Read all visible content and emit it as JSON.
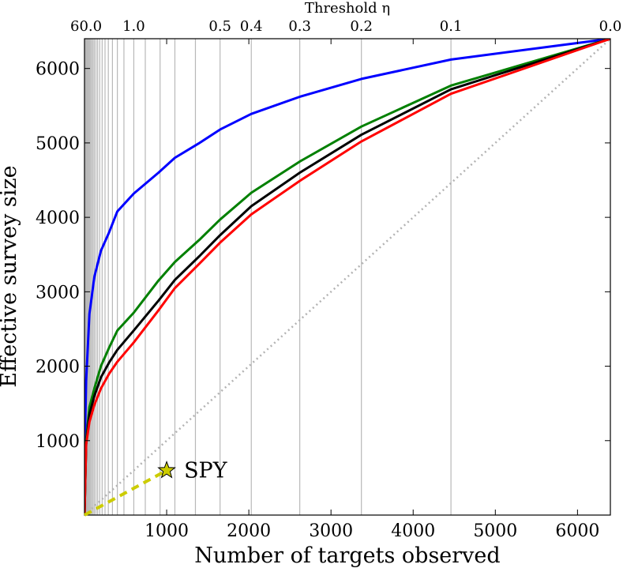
{
  "chart_data": {
    "type": "line",
    "xlabel": "Number of targets observed",
    "ylabel": "Effective survey size",
    "top_axis_title": "Threshold η",
    "xlim": [
      0,
      6400
    ],
    "ylim": [
      0,
      6400
    ],
    "x_ticks": [
      {
        "value": 1000,
        "label": "1000"
      },
      {
        "value": 2000,
        "label": "2000"
      },
      {
        "value": 3000,
        "label": "3000"
      },
      {
        "value": 4000,
        "label": "4000"
      },
      {
        "value": 5000,
        "label": "5000"
      },
      {
        "value": 6000,
        "label": "6000"
      }
    ],
    "y_ticks": [
      {
        "value": 1000,
        "label": "1000"
      },
      {
        "value": 2000,
        "label": "2000"
      },
      {
        "value": 3000,
        "label": "3000"
      },
      {
        "value": 4000,
        "label": "4000"
      },
      {
        "value": 5000,
        "label": "5000"
      },
      {
        "value": 6000,
        "label": "6000"
      }
    ],
    "threshold_ticks": [
      {
        "x": 20,
        "label": "60.0"
      },
      {
        "x": 600,
        "label": "1.0"
      },
      {
        "x": 1650,
        "label": "0.5"
      },
      {
        "x": 2030,
        "label": "0.4"
      },
      {
        "x": 2620,
        "label": "0.3"
      },
      {
        "x": 3370,
        "label": "0.2"
      },
      {
        "x": 4460,
        "label": "0.1"
      },
      {
        "x": 6400,
        "label": "0.0"
      }
    ],
    "threshold_gridlines": [
      5,
      10,
      15,
      20,
      28,
      36,
      45,
      55,
      65,
      75,
      90,
      105,
      120,
      140,
      160,
      185,
      215,
      250,
      290,
      340,
      400,
      480,
      600,
      740,
      920,
      1100,
      1350,
      1650,
      2030,
      2620,
      3370,
      4460
    ],
    "series": [
      {
        "color": "#0000ff",
        "x": [
          0,
          5,
          20,
          60,
          120,
          200,
          300,
          400,
          600,
          900,
          1100,
          1400,
          1650,
          2030,
          2620,
          3370,
          4460,
          6400
        ],
        "y": [
          0,
          1000,
          1800,
          2700,
          3200,
          3550,
          3800,
          4080,
          4320,
          4600,
          4800,
          5000,
          5180,
          5390,
          5620,
          5860,
          6120,
          6400
        ]
      },
      {
        "color": "#008000",
        "x": [
          0,
          20,
          60,
          120,
          200,
          300,
          400,
          600,
          900,
          1100,
          1400,
          1650,
          2030,
          2620,
          3370,
          4460,
          6400
        ],
        "y": [
          0,
          1000,
          1450,
          1700,
          2000,
          2250,
          2480,
          2720,
          3150,
          3400,
          3700,
          3970,
          4330,
          4750,
          5220,
          5770,
          6400
        ]
      },
      {
        "color": "#000000",
        "x": [
          0,
          20,
          60,
          120,
          200,
          300,
          400,
          600,
          900,
          1100,
          1400,
          1650,
          2030,
          2620,
          3370,
          4460,
          6400
        ],
        "y": [
          0,
          950,
          1350,
          1600,
          1850,
          2050,
          2220,
          2480,
          2880,
          3160,
          3480,
          3760,
          4150,
          4600,
          5110,
          5720,
          6400
        ]
      },
      {
        "color": "#ff0000",
        "x": [
          0,
          20,
          60,
          120,
          200,
          300,
          400,
          600,
          900,
          1100,
          1400,
          1650,
          2030,
          2620,
          3370,
          4460,
          6400
        ],
        "y": [
          0,
          950,
          1250,
          1480,
          1700,
          1900,
          2060,
          2320,
          2750,
          3050,
          3380,
          3660,
          4040,
          4490,
          5020,
          5660,
          6400
        ]
      }
    ],
    "reference_line": {
      "color": "#b3b3b3",
      "x": [
        0,
        6400
      ],
      "y": [
        0,
        6400
      ]
    },
    "spy": {
      "label": "SPY",
      "point": {
        "x": 1000,
        "y": 600
      },
      "color": "#cccc00",
      "dash_line": {
        "x": [
          0,
          1000
        ],
        "y": [
          0,
          600
        ]
      }
    },
    "grid": false
  }
}
